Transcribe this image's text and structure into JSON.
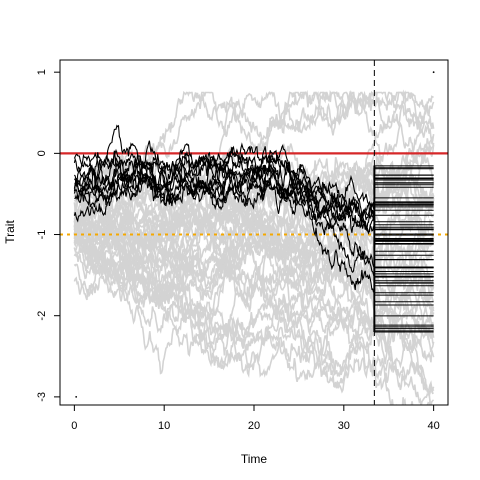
{
  "chart_data": {
    "type": "line",
    "xlabel": "Time",
    "ylabel": "Trait",
    "xlim": [
      -1.6,
      41.6
    ],
    "ylim": [
      -3.1,
      1.15
    ],
    "x_ticks": [
      0,
      10,
      20,
      30,
      40
    ],
    "y_ticks": [
      1,
      0,
      -1,
      -2,
      -3
    ],
    "x_tick_labels": [
      "0",
      "10",
      "20",
      "30",
      "40"
    ],
    "y_tick_labels": [
      "1",
      "0",
      "-1",
      "-2",
      "-3"
    ],
    "grid": false,
    "legend": "none",
    "reference_lines": [
      {
        "orientation": "horizontal",
        "value": 0,
        "style": "solid",
        "color": "#d62728"
      },
      {
        "orientation": "horizontal",
        "value": -1,
        "style": "dotted",
        "color": "#f5a800"
      },
      {
        "orientation": "vertical",
        "value": 33.4,
        "style": "dashed",
        "color": "#000000"
      }
    ],
    "background_paths": {
      "color": "#d3d3d3",
      "count": 40,
      "x_range": [
        0,
        40
      ],
      "start_value": -1.0,
      "spread_range": [
        -3.2,
        0.75
      ]
    },
    "foreground_paths": {
      "color": "#000000",
      "count": 10,
      "x_range": [
        0,
        33.4
      ],
      "start_value": -0.3,
      "end_range": [
        -2.2,
        -0.15
      ]
    },
    "terminal_values": {
      "x_range": [
        33.4,
        40
      ],
      "y_range": [
        -2.2,
        -0.15
      ]
    },
    "corner_points": [
      {
        "x": 0.2,
        "y": -3.0
      },
      {
        "x": 40,
        "y": 1.0
      }
    ]
  }
}
